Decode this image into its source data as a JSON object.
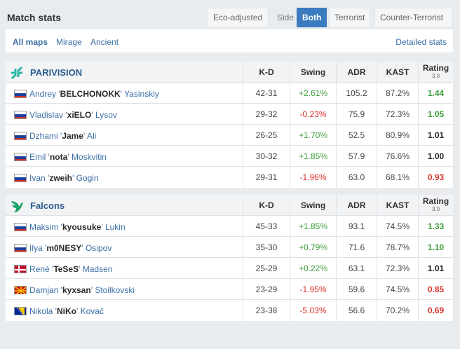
{
  "header": {
    "title": "Match stats",
    "eco_adjusted": "Eco-adjusted",
    "side_label": "Side",
    "side_options": [
      "Both",
      "Terrorist",
      "Counter-Terrorist"
    ],
    "side_selected": "Both"
  },
  "maps": {
    "items": [
      "All maps",
      "Mirage",
      "Ancient"
    ],
    "selected": "All maps",
    "detailed_link": "Detailed stats"
  },
  "columns": {
    "kd": "K-D",
    "swing": "Swing",
    "adr": "ADR",
    "kast": "KAST",
    "rating": "Rating",
    "rating_version": "3.0"
  },
  "colors": {
    "accent": "#3b7bbf",
    "positive": "#3b9e3b",
    "negative": "#d9312b"
  },
  "teams": [
    {
      "name": "PARIVISION",
      "logo": "parivision-logo",
      "players": [
        {
          "flag": "russia-flag",
          "first": "Andrey '",
          "nick": "BELCHONOKK",
          "last": "' Yasinskiy",
          "kd": "42-31",
          "swing": "+2.61%",
          "adr": "105.2",
          "kast": "87.2%",
          "rating": "1.44"
        },
        {
          "flag": "russia-flag",
          "first": "Vladislav '",
          "nick": "xiELO",
          "last": "' Lysov",
          "kd": "29-32",
          "swing": "-0.23%",
          "adr": "75.9",
          "kast": "72.3%",
          "rating": "1.05"
        },
        {
          "flag": "russia-flag",
          "first": "Dzhami '",
          "nick": "Jame",
          "last": "' Ali",
          "kd": "26-25",
          "swing": "+1.70%",
          "adr": "52.5",
          "kast": "80.9%",
          "rating": "1.01"
        },
        {
          "flag": "russia-flag",
          "first": "Emil '",
          "nick": "nota",
          "last": "' Moskvitin",
          "kd": "30-32",
          "swing": "+1.85%",
          "adr": "57.9",
          "kast": "76.6%",
          "rating": "1.00"
        },
        {
          "flag": "russia-flag",
          "first": "Ivan '",
          "nick": "zweih",
          "last": "' Gogin",
          "kd": "29-31",
          "swing": "-1.96%",
          "adr": "63.0",
          "kast": "68.1%",
          "rating": "0.93"
        }
      ]
    },
    {
      "name": "Falcons",
      "logo": "falcons-logo",
      "players": [
        {
          "flag": "russia-flag",
          "first": "Maksim '",
          "nick": "kyousuke",
          "last": "' Lukin",
          "kd": "45-33",
          "swing": "+1.85%",
          "adr": "93.1",
          "kast": "74.5%",
          "rating": "1.33"
        },
        {
          "flag": "russia-flag",
          "first": "Ilya '",
          "nick": "m0NESY",
          "last": "' Osipov",
          "kd": "35-30",
          "swing": "+0.79%",
          "adr": "71.6",
          "kast": "78.7%",
          "rating": "1.10"
        },
        {
          "flag": "denmark-flag",
          "first": "René '",
          "nick": "TeSeS",
          "last": "' Madsen",
          "kd": "25-29",
          "swing": "+0.22%",
          "adr": "63.1",
          "kast": "72.3%",
          "rating": "1.01"
        },
        {
          "flag": "north-macedonia-flag",
          "first": "Damjan '",
          "nick": "kyxsan",
          "last": "' Stoilkovski",
          "kd": "23-29",
          "swing": "-1.95%",
          "adr": "59.6",
          "kast": "74.5%",
          "rating": "0.85"
        },
        {
          "flag": "bosnia-flag",
          "first": "Nikola '",
          "nick": "NiKo",
          "last": "' Kovač",
          "kd": "23-38",
          "swing": "-5.03%",
          "adr": "56.6",
          "kast": "70.2%",
          "rating": "0.69"
        }
      ]
    }
  ]
}
